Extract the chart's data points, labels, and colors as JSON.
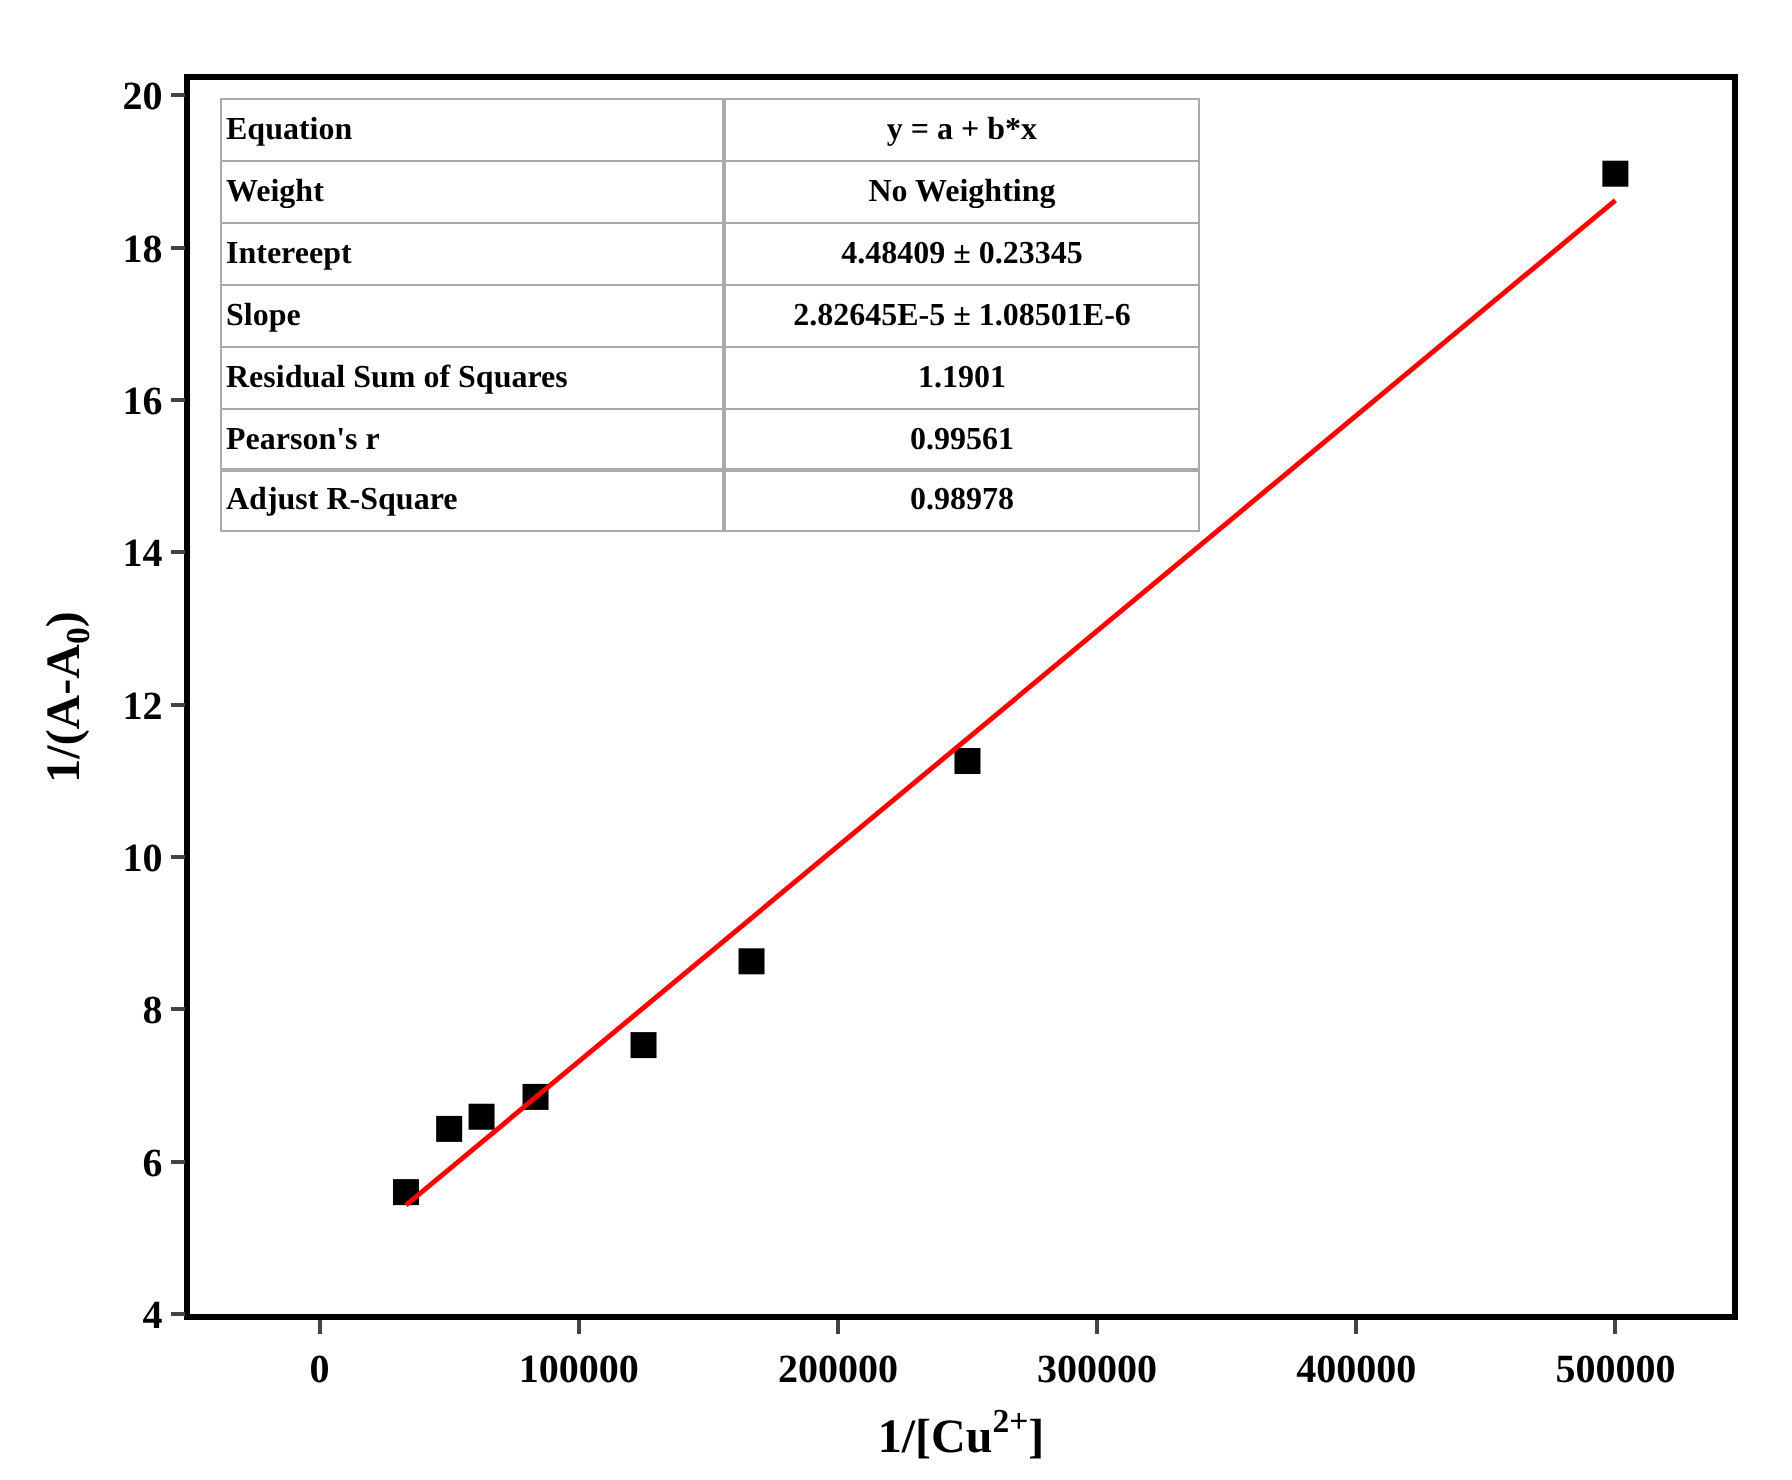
{
  "chart_data": {
    "type": "scatter",
    "xlabel": "1/[Cu$^{2+}$]",
    "ylabel": "1/(A-A$_{0}$)",
    "xlim": [
      -50000,
      545000
    ],
    "ylim": [
      4,
      20.2
    ],
    "xticks": [
      0,
      100000,
      200000,
      300000,
      400000,
      500000
    ],
    "yticks": [
      4,
      6,
      8,
      10,
      12,
      14,
      16,
      18,
      20
    ],
    "legend": false,
    "series": [
      {
        "marker": "square",
        "color": "#000000",
        "x": [
          33333,
          50000,
          62500,
          83333,
          125000,
          166667,
          250000,
          500000
        ],
        "values": [
          5.6,
          6.43,
          6.59,
          6.85,
          7.53,
          8.63,
          11.26,
          18.97
        ]
      },
      {
        "type": "line",
        "marker": "none",
        "line_style": "solid",
        "color": "#ff0000",
        "x": [
          33333,
          500000
        ],
        "values": [
          5.43,
          18.62
        ]
      }
    ],
    "annotations": [
      "Equation",
      "y = a + b*x",
      "Weight",
      "No Weighting",
      "Intereept",
      "4.48409 ± 0.23345",
      "Slope",
      "2.82645E-5 ± 1.08501E-6",
      "Residual Sum of Squares",
      "1.1901",
      "Pearson's r",
      "0.99561",
      "Adjust R-Square",
      "0.98978"
    ]
  }
}
